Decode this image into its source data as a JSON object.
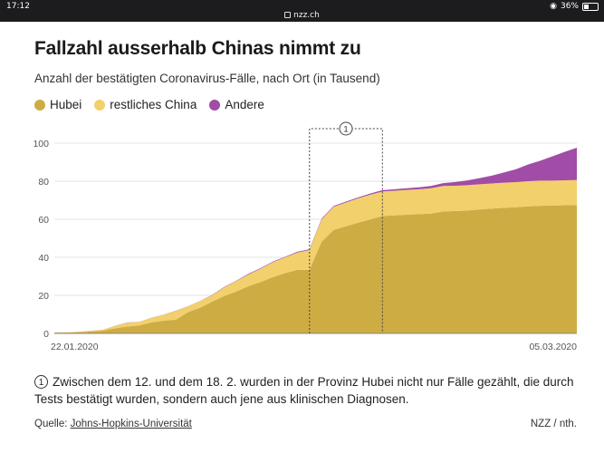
{
  "statusbar": {
    "time": "17:12",
    "url": "nzz.ch",
    "battery": "36%",
    "battery_level": 0.36
  },
  "title": "Fallzahl ausserhalb Chinas nimmt zu",
  "subtitle": "Anzahl der bestätigten Coronavirus-Fälle, nach Ort (in Tausend)",
  "note": {
    "marker": "1",
    "text": "Zwischen dem 12. und dem 18. 2. wurden in der Provinz Hubei nicht nur Fälle gezählt, die durch Tests bestätigt wurden, sondern auch jene aus klinischen Diagnosen."
  },
  "source": {
    "prefix": "Quelle: ",
    "link": "Johns-Hopkins-Universität"
  },
  "credit": "NZZ / nth.",
  "colors": {
    "hubei": "#ceac44",
    "rest_china": "#f2d06b",
    "andere": "#a14ca6"
  },
  "chart_data": {
    "type": "area",
    "stacked": true,
    "title": "Fallzahl ausserhalb Chinas nimmt zu",
    "ylabel": "",
    "xlabel": "",
    "ylim": [
      0,
      100
    ],
    "yticks": [
      0,
      20,
      40,
      60,
      80,
      100
    ],
    "x_tick_labels": [
      "22.01.2020",
      "05.03.2020"
    ],
    "grid": true,
    "legend_position": "top-left",
    "annotation": {
      "label": "1",
      "x_start": "12.02.2020",
      "x_end": "18.02.2020"
    },
    "x": [
      "22.01.2020",
      "23.01.2020",
      "24.01.2020",
      "25.01.2020",
      "26.01.2020",
      "27.01.2020",
      "28.01.2020",
      "29.01.2020",
      "30.01.2020",
      "31.01.2020",
      "01.02.2020",
      "02.02.2020",
      "03.02.2020",
      "04.02.2020",
      "05.02.2020",
      "06.02.2020",
      "07.02.2020",
      "08.02.2020",
      "09.02.2020",
      "10.02.2020",
      "11.02.2020",
      "12.02.2020",
      "13.02.2020",
      "14.02.2020",
      "15.02.2020",
      "16.02.2020",
      "17.02.2020",
      "18.02.2020",
      "19.02.2020",
      "20.02.2020",
      "21.02.2020",
      "22.02.2020",
      "23.02.2020",
      "24.02.2020",
      "25.02.2020",
      "26.02.2020",
      "27.02.2020",
      "28.02.2020",
      "29.02.2020",
      "01.03.2020",
      "02.03.2020",
      "03.03.2020",
      "04.03.2020",
      "05.03.2020"
    ],
    "series": [
      {
        "name": "Hubei",
        "values": [
          0.4,
          0.5,
          0.7,
          1.0,
          1.4,
          2.7,
          3.6,
          4.2,
          5.8,
          6.7,
          7.2,
          11.2,
          13.5,
          16.7,
          19.7,
          22.1,
          24.9,
          27.1,
          29.6,
          31.7,
          33.4,
          33.4,
          48.2,
          54.4,
          56.3,
          58.2,
          59.9,
          61.7,
          62.0,
          62.4,
          62.7,
          63.0,
          64.1,
          64.3,
          64.6,
          65.2,
          65.6,
          66.0,
          66.3,
          66.8,
          67.1,
          67.2,
          67.4,
          67.5
        ]
      },
      {
        "name": "restliches China",
        "values": [
          0.2,
          0.1,
          0.2,
          0.4,
          0.6,
          1.2,
          2.0,
          1.8,
          2.4,
          3.1,
          4.6,
          3.0,
          3.5,
          3.4,
          4.6,
          5.5,
          6.2,
          7.0,
          7.9,
          8.3,
          9.1,
          10.4,
          11.8,
          12.2,
          12.5,
          12.8,
          13.0,
          12.9,
          13.0,
          13.0,
          13.1,
          13.3,
          13.4,
          13.3,
          13.3,
          13.2,
          13.2,
          13.2,
          13.2,
          13.2,
          13.2,
          13.1,
          13.1,
          13.1
        ]
      },
      {
        "name": "Andere",
        "values": [
          0,
          0,
          0,
          0,
          0,
          0.1,
          0.1,
          0.1,
          0.1,
          0.1,
          0.1,
          0.1,
          0.1,
          0.2,
          0.2,
          0.2,
          0.3,
          0.3,
          0.3,
          0.3,
          0.4,
          0.4,
          0.4,
          0.4,
          0.5,
          0.5,
          0.6,
          0.7,
          0.8,
          0.9,
          1.0,
          1.2,
          1.5,
          2.0,
          2.5,
          3.2,
          4.1,
          5.4,
          6.8,
          8.8,
          10.5,
          12.8,
          14.9,
          17.0
        ]
      }
    ]
  }
}
